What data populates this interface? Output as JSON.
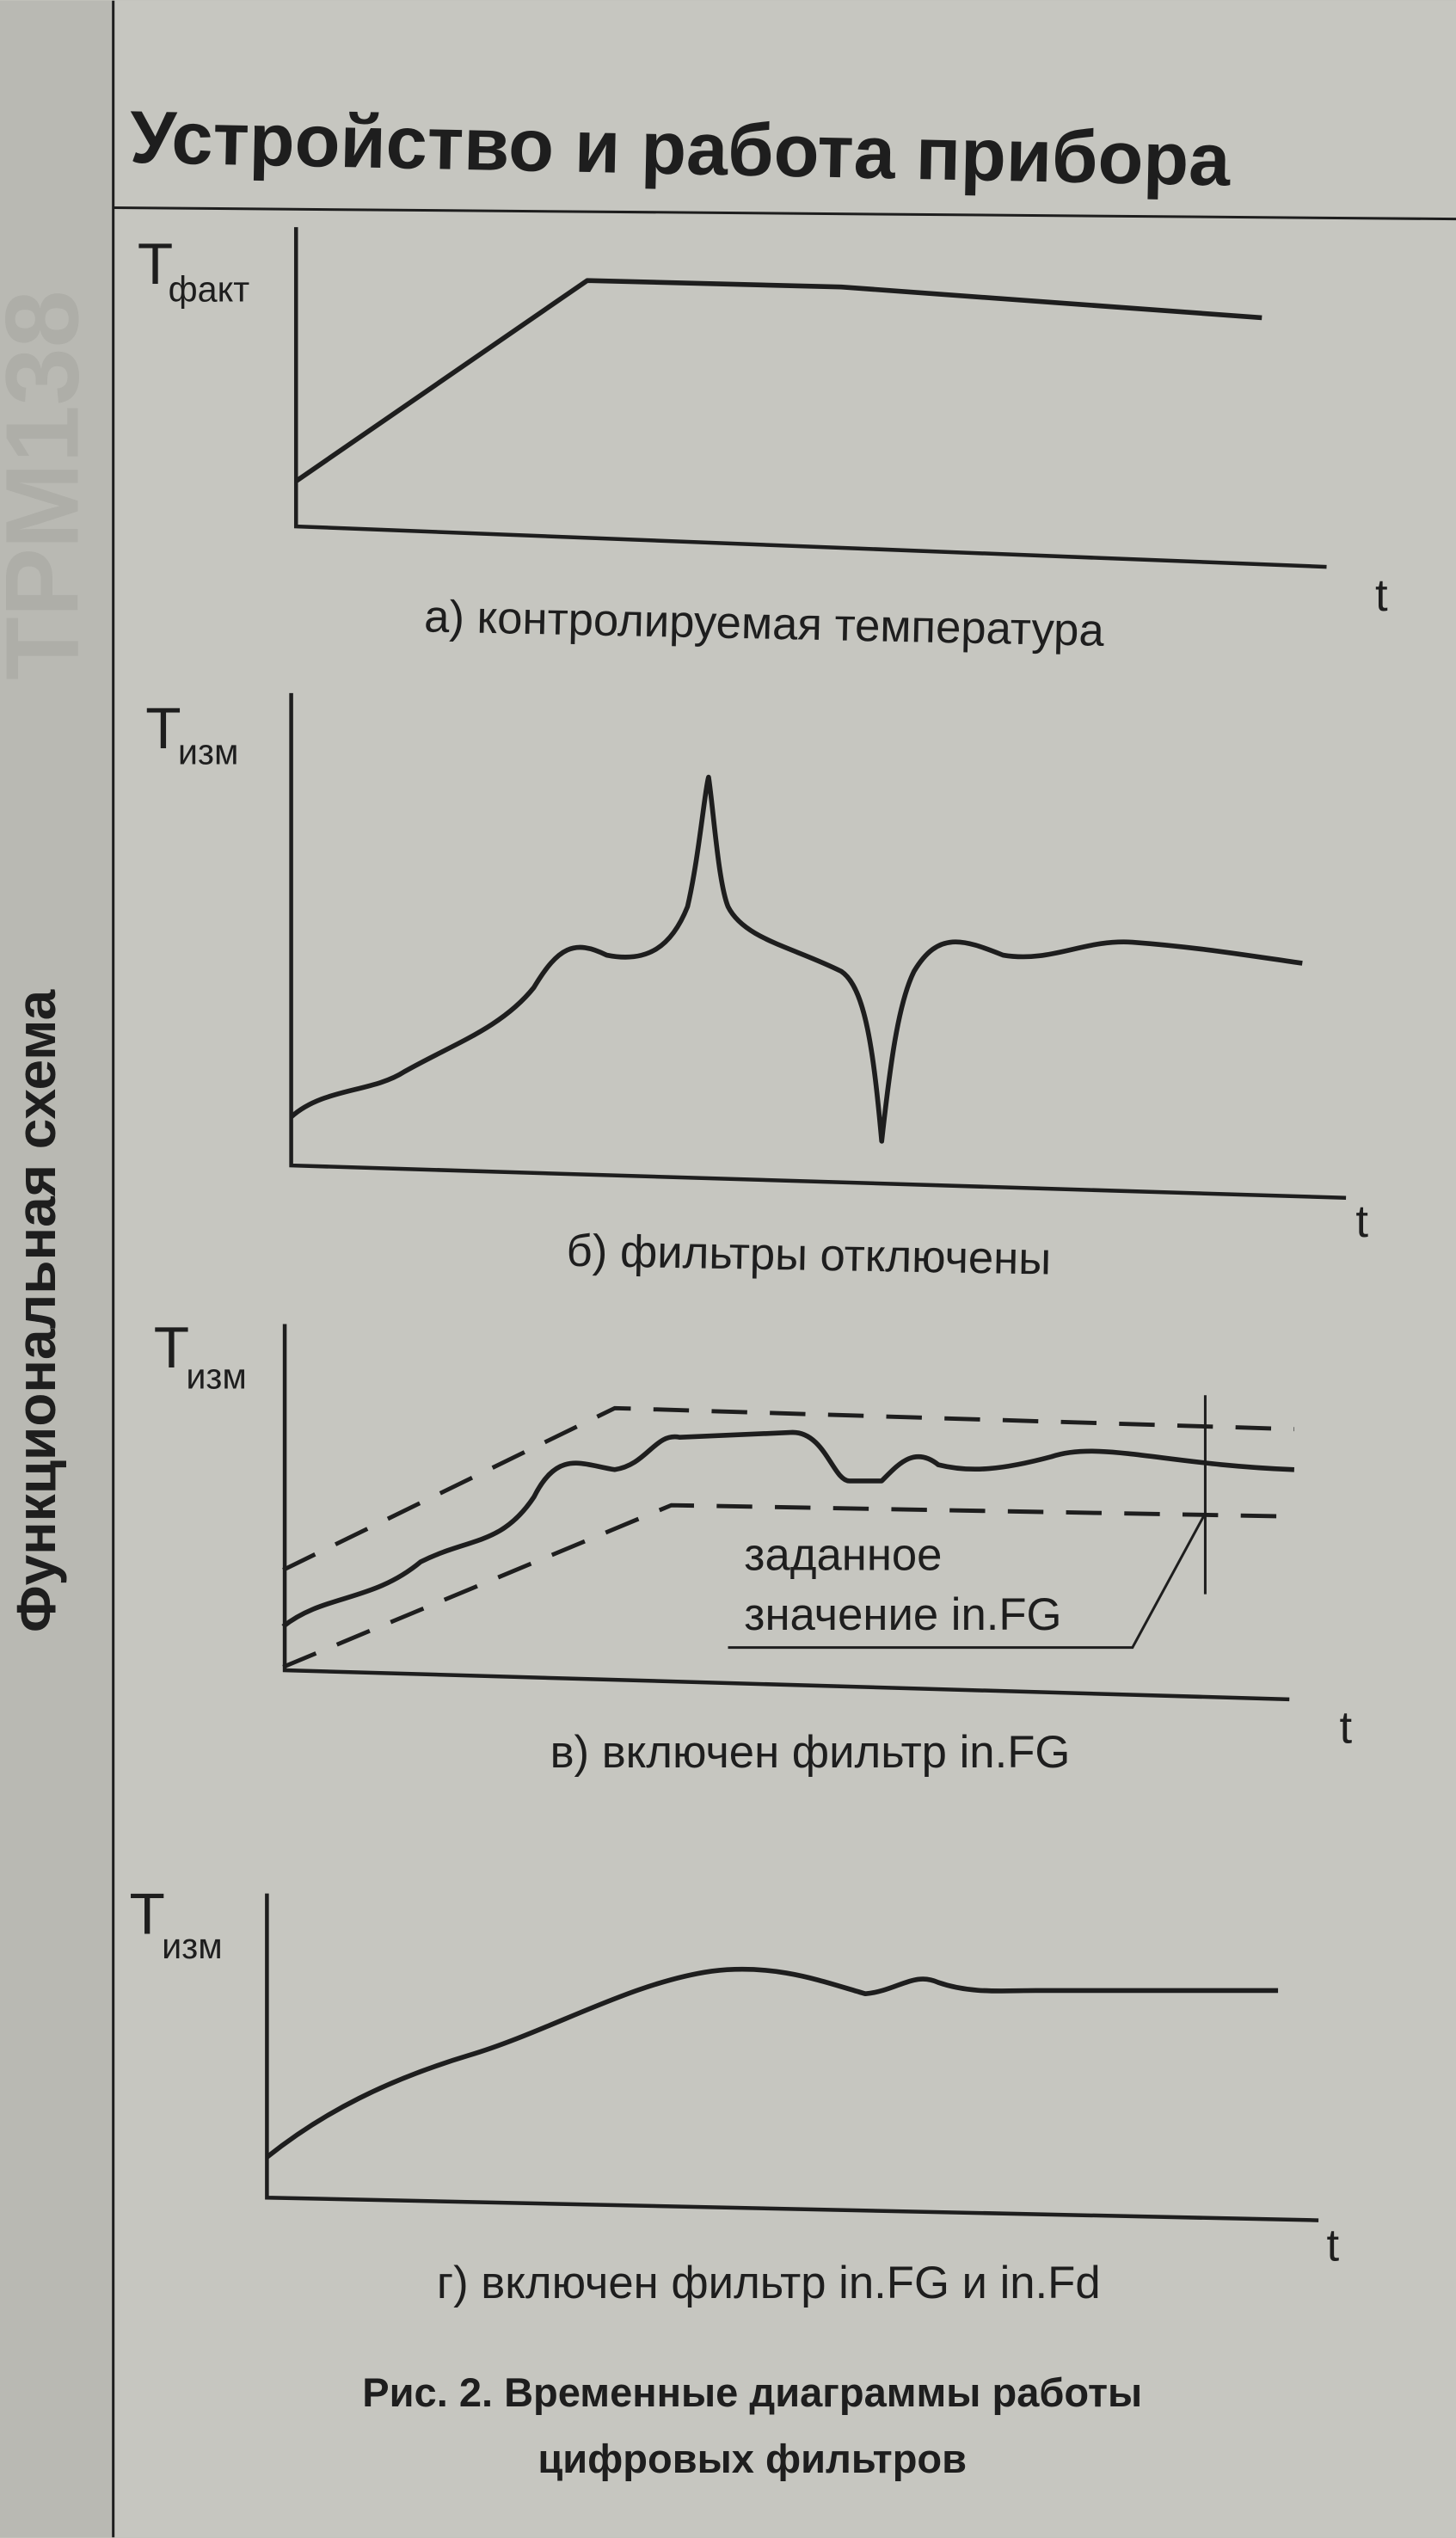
{
  "header": {
    "title": "Устройство и работа прибора"
  },
  "sidebar": {
    "section": "Функциональная схема",
    "model": "ТРМ138"
  },
  "figure": {
    "panels": [
      {
        "axis_symbol": "Т",
        "axis_subscript": "факт",
        "x_label": "t",
        "caption": "а) контролируемая температура"
      },
      {
        "axis_symbol": "Т",
        "axis_subscript": "изм",
        "x_label": "t",
        "caption": "б) фильтры отключены"
      },
      {
        "axis_symbol": "Т",
        "axis_subscript": "изм",
        "x_label": "t",
        "caption": "в) включен фильтр in.FG"
      },
      {
        "axis_symbol": "Т",
        "axis_subscript": "изм",
        "x_label": "t",
        "caption": "г) включен фильтр in.FG и in.Fd"
      }
    ],
    "annotation": [
      "заданное",
      "значение in.FG"
    ],
    "caption": [
      "Рис. 2. Временные диаграммы работы",
      "цифровых фильтров"
    ]
  }
}
